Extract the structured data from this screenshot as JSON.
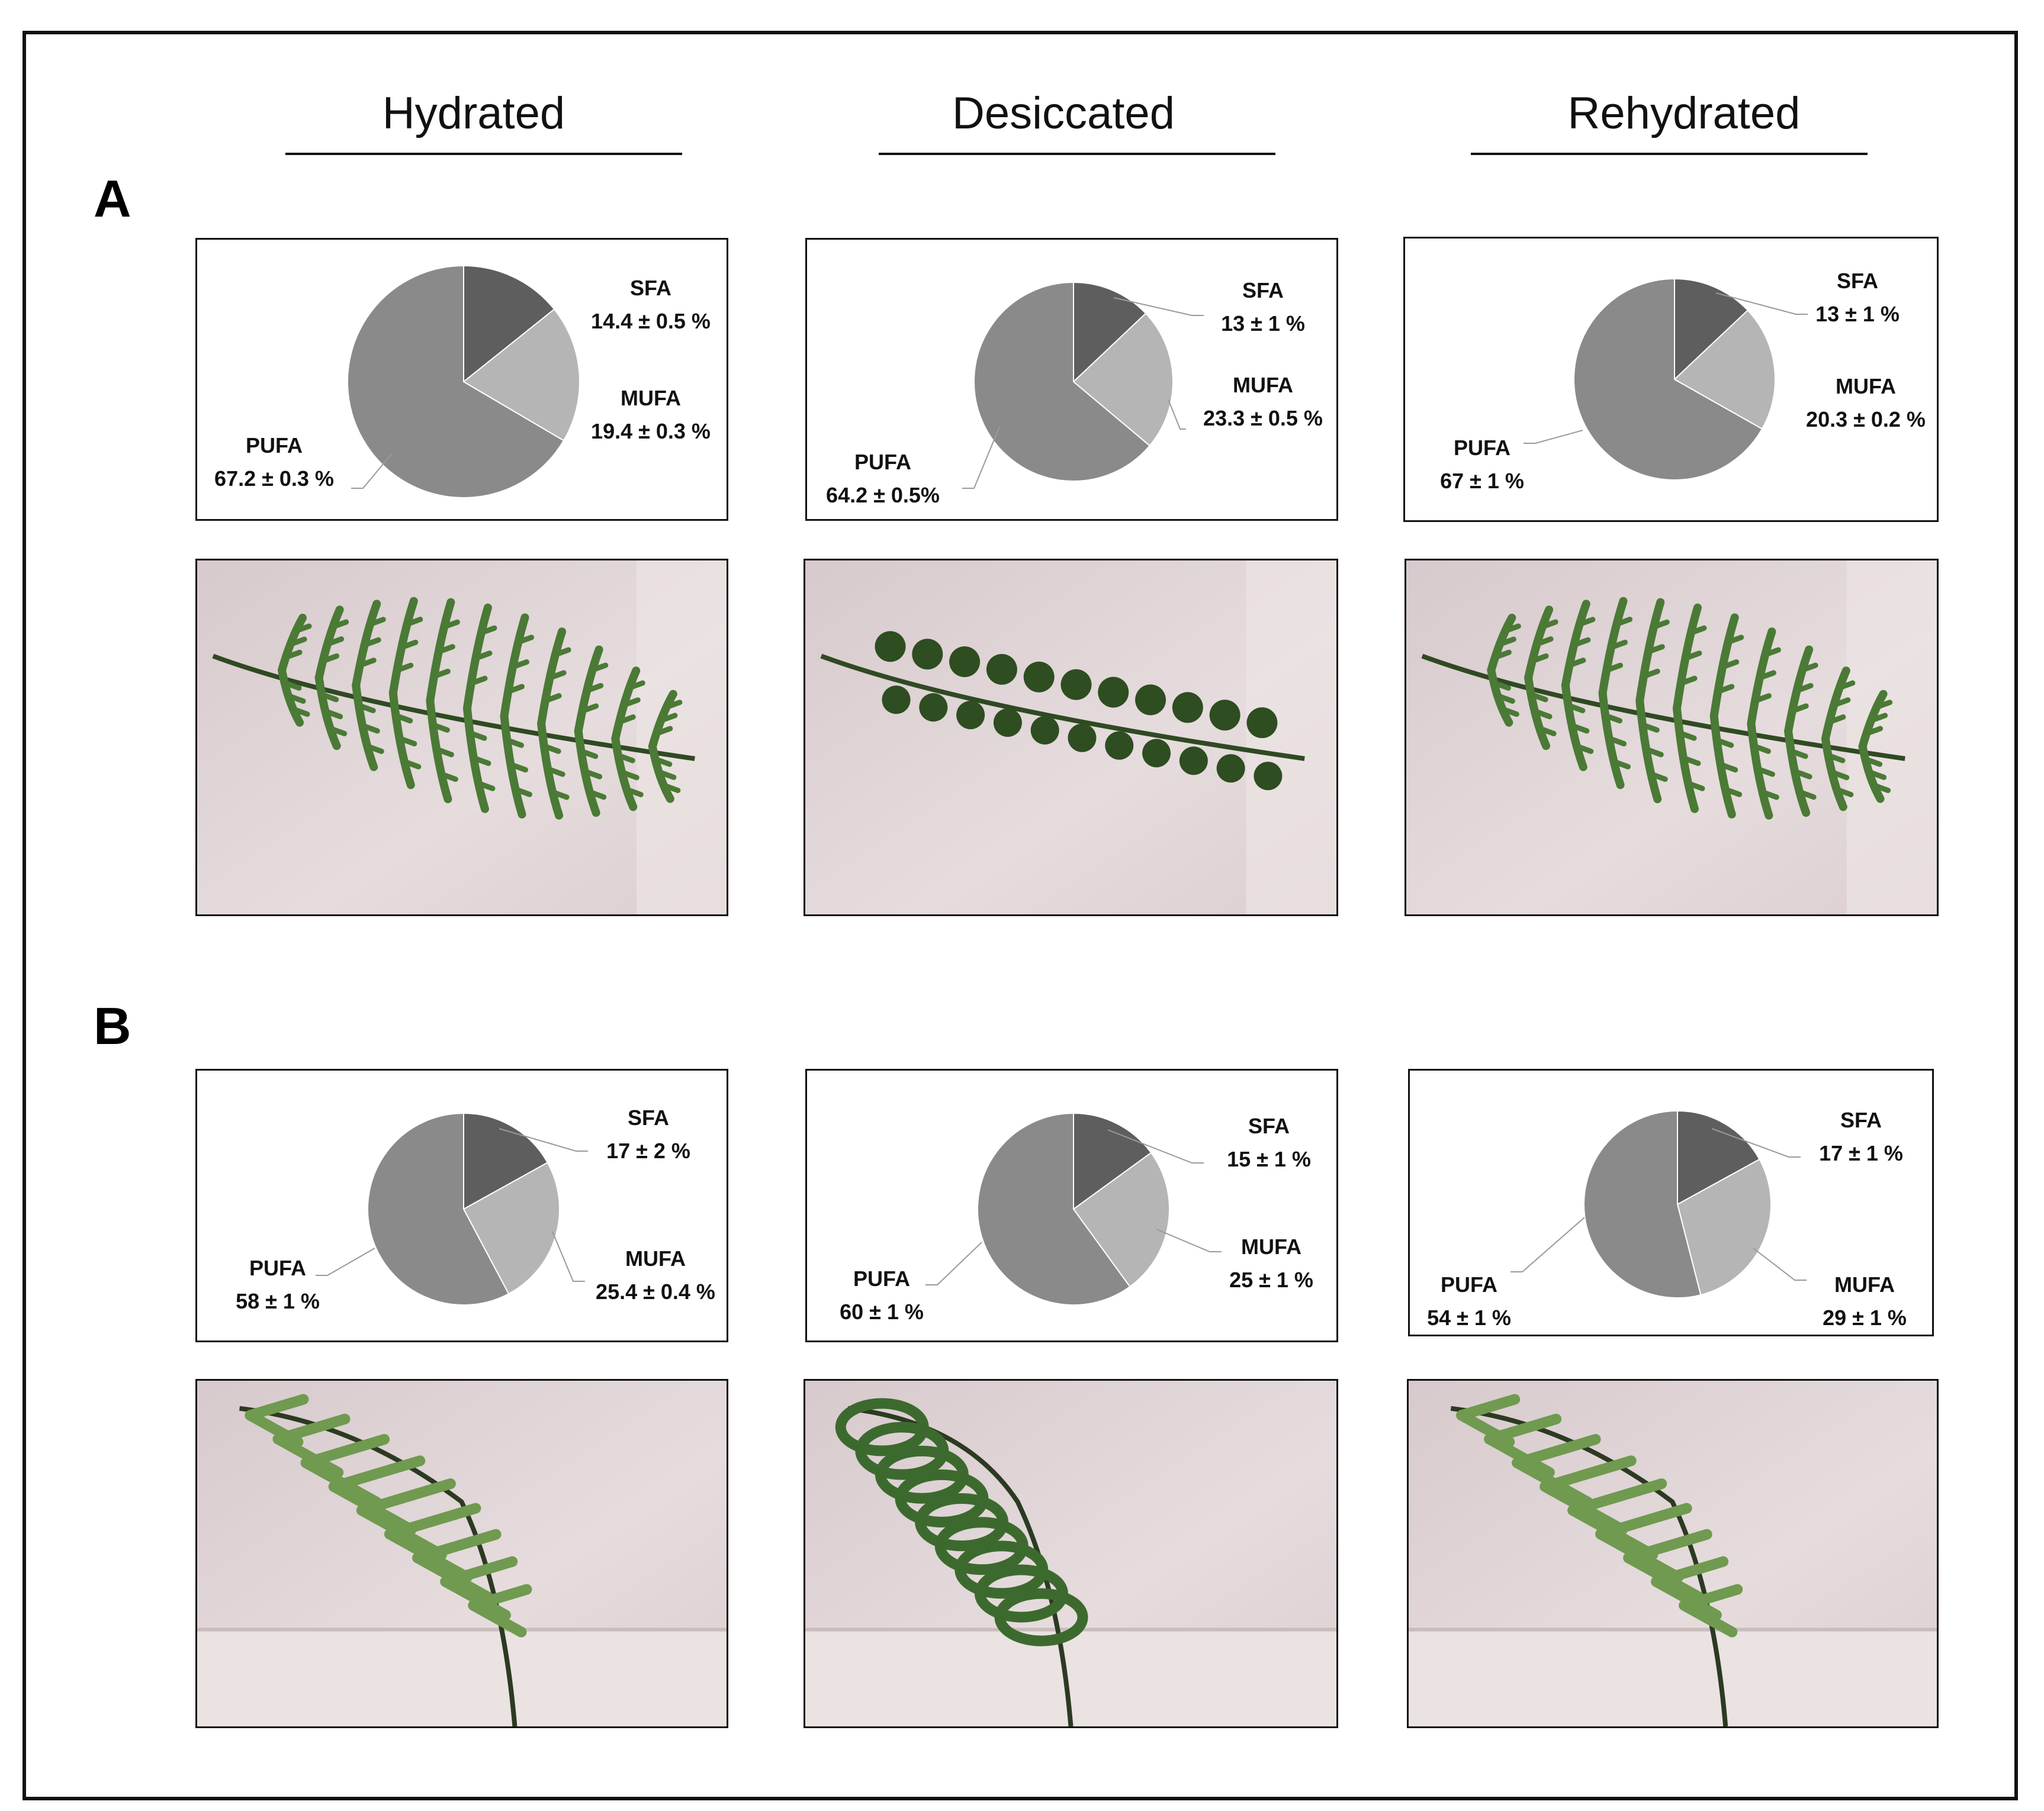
{
  "columns": [
    "Hydrated",
    "Desiccated",
    "Rehydrated"
  ],
  "panels": [
    {
      "letter": "A"
    },
    {
      "letter": "B"
    }
  ],
  "colors": {
    "SFA": "#5e5e5e",
    "MUFA": "#b5b5b5",
    "PUFA": "#8a8a8a",
    "leader": "#9a9a9a"
  },
  "photos": [
    {
      "panel": "A",
      "column": "Hydrated",
      "subject": "fern-frond-flat-hydrated"
    },
    {
      "panel": "A",
      "column": "Desiccated",
      "subject": "fern-frond-flat-desiccated"
    },
    {
      "panel": "A",
      "column": "Rehydrated",
      "subject": "fern-frond-flat-rehydrated"
    },
    {
      "panel": "B",
      "column": "Hydrated",
      "subject": "fern-frond-side-hydrated"
    },
    {
      "panel": "B",
      "column": "Desiccated",
      "subject": "fern-frond-side-desiccated"
    },
    {
      "panel": "B",
      "column": "Rehydrated",
      "subject": "fern-frond-side-rehydrated"
    }
  ],
  "chart_data": [
    {
      "type": "pie",
      "panel": "A",
      "column": "Hydrated",
      "slices": [
        {
          "name": "SFA",
          "value": 14.4,
          "label": "14.4 ± 0.5 %"
        },
        {
          "name": "MUFA",
          "value": 19.4,
          "label": "19.4 ± 0.3 %"
        },
        {
          "name": "PUFA",
          "value": 67.2,
          "label": "67.2 ± 0.3 %"
        }
      ]
    },
    {
      "type": "pie",
      "panel": "A",
      "column": "Desiccated",
      "slices": [
        {
          "name": "SFA",
          "value": 13,
          "label": "13 ± 1 %"
        },
        {
          "name": "MUFA",
          "value": 23.3,
          "label": "23.3 ± 0.5 %"
        },
        {
          "name": "PUFA",
          "value": 64.2,
          "label": "64.2 ± 0.5%"
        }
      ]
    },
    {
      "type": "pie",
      "panel": "A",
      "column": "Rehydrated",
      "slices": [
        {
          "name": "SFA",
          "value": 13,
          "label": "13 ± 1 %"
        },
        {
          "name": "MUFA",
          "value": 20.3,
          "label": "20.3 ± 0.2 %"
        },
        {
          "name": "PUFA",
          "value": 67,
          "label": "67 ± 1 %"
        }
      ]
    },
    {
      "type": "pie",
      "panel": "B",
      "column": "Hydrated",
      "slices": [
        {
          "name": "SFA",
          "value": 17,
          "label": "17 ± 2 %"
        },
        {
          "name": "MUFA",
          "value": 25.4,
          "label": "25.4 ± 0.4 %"
        },
        {
          "name": "PUFA",
          "value": 58,
          "label": "58 ± 1 %"
        }
      ]
    },
    {
      "type": "pie",
      "panel": "B",
      "column": "Desiccated",
      "slices": [
        {
          "name": "SFA",
          "value": 15,
          "label": "15 ± 1 %"
        },
        {
          "name": "MUFA",
          "value": 25,
          "label": "25 ± 1 %"
        },
        {
          "name": "PUFA",
          "value": 60,
          "label": "60 ± 1 %"
        }
      ]
    },
    {
      "type": "pie",
      "panel": "B",
      "column": "Rehydrated",
      "slices": [
        {
          "name": "SFA",
          "value": 17,
          "label": "17 ± 1 %"
        },
        {
          "name": "MUFA",
          "value": 29,
          "label": "29 ± 1 %"
        },
        {
          "name": "PUFA",
          "value": 54,
          "label": "54 ± 1 %"
        }
      ]
    }
  ]
}
